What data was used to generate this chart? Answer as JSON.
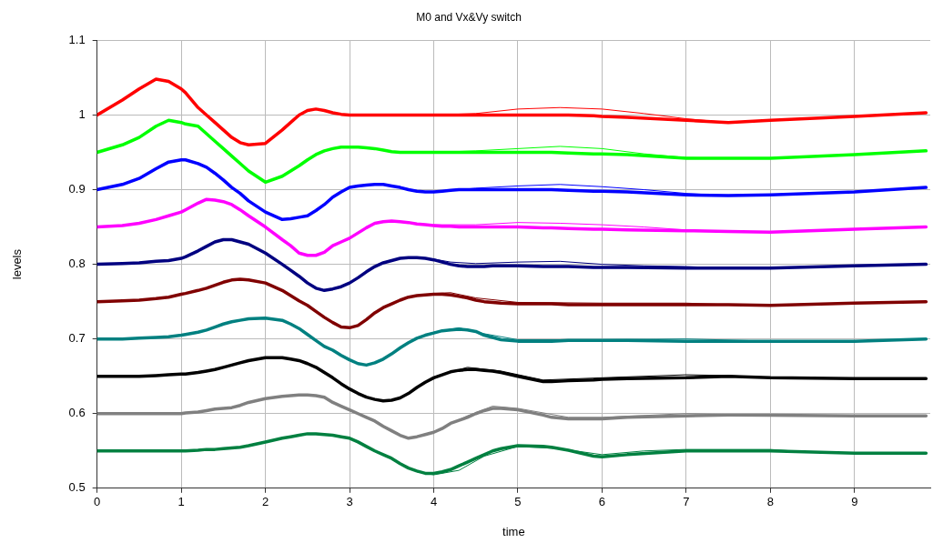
{
  "chart_data": {
    "type": "line",
    "title": "M0 and Vx&Vy switch",
    "xlabel": "time",
    "ylabel": "levels",
    "x": [
      0,
      0.3,
      0.5,
      0.7,
      0.85,
      1.0,
      1.05,
      1.2,
      1.3,
      1.4,
      1.5,
      1.6,
      1.7,
      1.8,
      2.0,
      2.2,
      2.3,
      2.4,
      2.5,
      2.6,
      2.7,
      2.8,
      2.9,
      3.0,
      3.1,
      3.2,
      3.3,
      3.4,
      3.5,
      3.6,
      3.7,
      3.8,
      3.9,
      4.0,
      4.1,
      4.2,
      4.3,
      4.4,
      4.5,
      4.6,
      4.7,
      4.8,
      5.0,
      5.3,
      5.4,
      5.6,
      5.9,
      6.0,
      6.3,
      7.0,
      7.5,
      8.0,
      9.0,
      9.85
    ],
    "series": [
      {
        "color": "#ff0000",
        "values": [
          1.0,
          1.02,
          1.035,
          1.048,
          1.045,
          1.035,
          1.03,
          1.01,
          1.0,
          0.99,
          0.98,
          0.97,
          0.963,
          0.96,
          0.962,
          0.98,
          0.99,
          1.0,
          1.006,
          1.008,
          1.006,
          1.003,
          1.001,
          1.0,
          1.0,
          1.0,
          1.0,
          1.0,
          1.0,
          1.0,
          1.0,
          1.0,
          1.0,
          1.0,
          1.0,
          1.0,
          1.0,
          1.0,
          1.0,
          1.0,
          1.0,
          1.0,
          1.0,
          1.0,
          1.0,
          1.0,
          0.999,
          0.998,
          0.997,
          0.993,
          0.99,
          0.993,
          0.998,
          1.003
        ]
      },
      {
        "color": "#00ff00",
        "values": [
          0.95,
          0.96,
          0.97,
          0.985,
          0.993,
          0.99,
          0.988,
          0.985,
          0.975,
          0.965,
          0.955,
          0.945,
          0.935,
          0.925,
          0.91,
          0.918,
          0.925,
          0.932,
          0.94,
          0.947,
          0.952,
          0.955,
          0.957,
          0.957,
          0.957,
          0.956,
          0.955,
          0.953,
          0.951,
          0.95,
          0.95,
          0.95,
          0.95,
          0.95,
          0.95,
          0.95,
          0.95,
          0.95,
          0.95,
          0.95,
          0.95,
          0.95,
          0.95,
          0.95,
          0.95,
          0.949,
          0.948,
          0.948,
          0.947,
          0.942,
          0.942,
          0.942,
          0.947,
          0.952
        ]
      },
      {
        "color": "#0000ff",
        "values": [
          0.9,
          0.907,
          0.915,
          0.928,
          0.937,
          0.94,
          0.94,
          0.935,
          0.93,
          0.922,
          0.913,
          0.903,
          0.895,
          0.885,
          0.87,
          0.86,
          0.861,
          0.863,
          0.865,
          0.872,
          0.88,
          0.89,
          0.897,
          0.903,
          0.905,
          0.906,
          0.907,
          0.907,
          0.905,
          0.903,
          0.9,
          0.898,
          0.897,
          0.897,
          0.898,
          0.899,
          0.9,
          0.9,
          0.9,
          0.9,
          0.9,
          0.9,
          0.9,
          0.9,
          0.9,
          0.899,
          0.898,
          0.898,
          0.897,
          0.893,
          0.892,
          0.893,
          0.897,
          0.903
        ]
      },
      {
        "color": "#ff00ff",
        "values": [
          0.85,
          0.852,
          0.855,
          0.86,
          0.865,
          0.87,
          0.873,
          0.882,
          0.887,
          0.886,
          0.884,
          0.88,
          0.873,
          0.865,
          0.85,
          0.833,
          0.825,
          0.815,
          0.812,
          0.812,
          0.816,
          0.825,
          0.83,
          0.835,
          0.842,
          0.849,
          0.855,
          0.857,
          0.858,
          0.857,
          0.856,
          0.854,
          0.853,
          0.852,
          0.851,
          0.851,
          0.85,
          0.85,
          0.85,
          0.85,
          0.85,
          0.85,
          0.85,
          0.849,
          0.849,
          0.848,
          0.847,
          0.847,
          0.846,
          0.845,
          0.844,
          0.843,
          0.847,
          0.85
        ]
      },
      {
        "color": "#000080",
        "values": [
          0.8,
          0.801,
          0.802,
          0.804,
          0.805,
          0.808,
          0.81,
          0.818,
          0.824,
          0.83,
          0.833,
          0.833,
          0.83,
          0.827,
          0.815,
          0.8,
          0.792,
          0.784,
          0.775,
          0.768,
          0.765,
          0.767,
          0.77,
          0.775,
          0.782,
          0.79,
          0.797,
          0.802,
          0.805,
          0.808,
          0.809,
          0.809,
          0.808,
          0.806,
          0.803,
          0.8,
          0.798,
          0.797,
          0.797,
          0.797,
          0.798,
          0.798,
          0.798,
          0.797,
          0.797,
          0.797,
          0.796,
          0.796,
          0.796,
          0.795,
          0.795,
          0.795,
          0.798,
          0.8
        ]
      },
      {
        "color": "#800000",
        "values": [
          0.75,
          0.751,
          0.752,
          0.754,
          0.756,
          0.76,
          0.761,
          0.765,
          0.768,
          0.772,
          0.776,
          0.779,
          0.78,
          0.779,
          0.775,
          0.765,
          0.758,
          0.751,
          0.745,
          0.737,
          0.729,
          0.722,
          0.716,
          0.715,
          0.718,
          0.726,
          0.735,
          0.742,
          0.747,
          0.752,
          0.756,
          0.758,
          0.759,
          0.76,
          0.76,
          0.759,
          0.757,
          0.755,
          0.752,
          0.75,
          0.749,
          0.748,
          0.747,
          0.747,
          0.747,
          0.746,
          0.746,
          0.746,
          0.746,
          0.746,
          0.746,
          0.745,
          0.748,
          0.75
        ]
      },
      {
        "color": "#008080",
        "values": [
          0.7,
          0.7,
          0.701,
          0.702,
          0.703,
          0.705,
          0.706,
          0.709,
          0.712,
          0.716,
          0.72,
          0.723,
          0.725,
          0.727,
          0.728,
          0.725,
          0.72,
          0.714,
          0.706,
          0.698,
          0.69,
          0.685,
          0.678,
          0.672,
          0.667,
          0.665,
          0.668,
          0.673,
          0.68,
          0.688,
          0.695,
          0.701,
          0.705,
          0.708,
          0.711,
          0.712,
          0.713,
          0.712,
          0.71,
          0.705,
          0.702,
          0.699,
          0.697,
          0.697,
          0.697,
          0.698,
          0.698,
          0.698,
          0.698,
          0.697,
          0.697,
          0.697,
          0.697,
          0.7
        ]
      },
      {
        "color": "#000000",
        "values": [
          0.65,
          0.65,
          0.65,
          0.651,
          0.652,
          0.653,
          0.653,
          0.655,
          0.657,
          0.659,
          0.662,
          0.665,
          0.668,
          0.671,
          0.675,
          0.675,
          0.673,
          0.671,
          0.667,
          0.662,
          0.655,
          0.648,
          0.64,
          0.633,
          0.627,
          0.622,
          0.619,
          0.617,
          0.618,
          0.621,
          0.627,
          0.635,
          0.642,
          0.648,
          0.652,
          0.656,
          0.658,
          0.659,
          0.659,
          0.658,
          0.657,
          0.655,
          0.65,
          0.643,
          0.643,
          0.644,
          0.645,
          0.646,
          0.647,
          0.648,
          0.65,
          0.648,
          0.647,
          0.647
        ]
      },
      {
        "color": "#808080",
        "values": [
          0.6,
          0.6,
          0.6,
          0.6,
          0.6,
          0.6,
          0.601,
          0.602,
          0.604,
          0.606,
          0.607,
          0.608,
          0.611,
          0.615,
          0.62,
          0.623,
          0.624,
          0.625,
          0.625,
          0.624,
          0.622,
          0.615,
          0.61,
          0.605,
          0.6,
          0.595,
          0.59,
          0.583,
          0.577,
          0.571,
          0.567,
          0.569,
          0.572,
          0.575,
          0.58,
          0.587,
          0.591,
          0.595,
          0.6,
          0.604,
          0.607,
          0.607,
          0.605,
          0.598,
          0.595,
          0.593,
          0.593,
          0.593,
          0.595,
          0.597,
          0.598,
          0.598,
          0.597,
          0.597
        ]
      },
      {
        "color": "#008040",
        "values": [
          0.55,
          0.55,
          0.55,
          0.55,
          0.55,
          0.55,
          0.55,
          0.551,
          0.552,
          0.552,
          0.553,
          0.554,
          0.555,
          0.557,
          0.562,
          0.567,
          0.569,
          0.571,
          0.573,
          0.573,
          0.572,
          0.571,
          0.569,
          0.567,
          0.562,
          0.556,
          0.55,
          0.545,
          0.54,
          0.533,
          0.527,
          0.523,
          0.52,
          0.52,
          0.522,
          0.525,
          0.53,
          0.535,
          0.54,
          0.545,
          0.55,
          0.553,
          0.557,
          0.556,
          0.555,
          0.551,
          0.543,
          0.542,
          0.545,
          0.55,
          0.55,
          0.55,
          0.547,
          0.547
        ]
      },
      {
        "color": "#ff0000",
        "x": [
          4.0,
          4.5,
          5.0,
          5.5,
          6.0,
          6.5,
          7.0,
          7.5
        ],
        "values": [
          1.0,
          1.002,
          1.008,
          1.01,
          1.008,
          1.002,
          0.995,
          0.99
        ]
      },
      {
        "color": "#00ff00",
        "x": [
          4.0,
          4.5,
          5.0,
          5.5,
          6.0,
          6.5,
          7.0,
          7.5
        ],
        "values": [
          0.95,
          0.952,
          0.955,
          0.958,
          0.955,
          0.948,
          0.943,
          0.942
        ]
      },
      {
        "color": "#0000ff",
        "x": [
          4.0,
          4.5,
          5.0,
          5.5,
          6.0,
          6.5,
          7.0,
          7.5
        ],
        "values": [
          0.897,
          0.902,
          0.905,
          0.907,
          0.904,
          0.9,
          0.895,
          0.892
        ]
      },
      {
        "color": "#ff00ff",
        "x": [
          4.0,
          4.5,
          5.0,
          5.5,
          6.0,
          6.5,
          7.0,
          7.5
        ],
        "values": [
          0.853,
          0.853,
          0.856,
          0.855,
          0.853,
          0.85,
          0.846,
          0.844
        ]
      },
      {
        "color": "#000080",
        "x": [
          4.0,
          4.2,
          4.5,
          5.0,
          5.5,
          6.0,
          6.5,
          7.0,
          7.5
        ],
        "values": [
          0.807,
          0.803,
          0.801,
          0.803,
          0.804,
          0.8,
          0.798,
          0.797,
          0.795
        ]
      },
      {
        "color": "#800000",
        "x": [
          4.0,
          4.2,
          4.5,
          5.0,
          6.0,
          7.0,
          7.5
        ],
        "values": [
          0.761,
          0.762,
          0.755,
          0.749,
          0.748,
          0.748,
          0.746
        ]
      },
      {
        "color": "#008080",
        "x": [
          4.0,
          4.3,
          4.6,
          5.0,
          6.0,
          7.0,
          8.0
        ],
        "values": [
          0.709,
          0.715,
          0.707,
          0.699,
          0.699,
          0.7,
          0.697
        ]
      },
      {
        "color": "#000000",
        "x": [
          4.0,
          4.4,
          4.8,
          5.3,
          6.0,
          7.0,
          7.5,
          8.0
        ],
        "values": [
          0.649,
          0.662,
          0.657,
          0.645,
          0.648,
          0.652,
          0.651,
          0.648
        ]
      },
      {
        "color": "#808080",
        "x": [
          4.0,
          4.4,
          4.7,
          5.0,
          5.6,
          6.0,
          7.0,
          8.0
        ],
        "values": [
          0.576,
          0.597,
          0.61,
          0.607,
          0.595,
          0.595,
          0.6,
          0.598
        ]
      },
      {
        "color": "#008040",
        "x": [
          3.8,
          4.0,
          4.3,
          4.6,
          5.0,
          5.5,
          6.0,
          6.5,
          7.0,
          8.0,
          8.5
        ],
        "values": [
          0.522,
          0.518,
          0.524,
          0.543,
          0.556,
          0.553,
          0.545,
          0.55,
          0.552,
          0.552,
          0.548
        ]
      }
    ],
    "xlim": [
      0,
      9.9
    ],
    "xticks": [
      0,
      1,
      2,
      3,
      4,
      5,
      6,
      7,
      8,
      9
    ],
    "ylim": [
      0.5,
      1.1
    ],
    "yticks": [
      0.5,
      0.6,
      0.7,
      0.8,
      0.9,
      1,
      1.1
    ],
    "grid": true,
    "legend": false,
    "marker": "none",
    "line_style": "solid"
  }
}
